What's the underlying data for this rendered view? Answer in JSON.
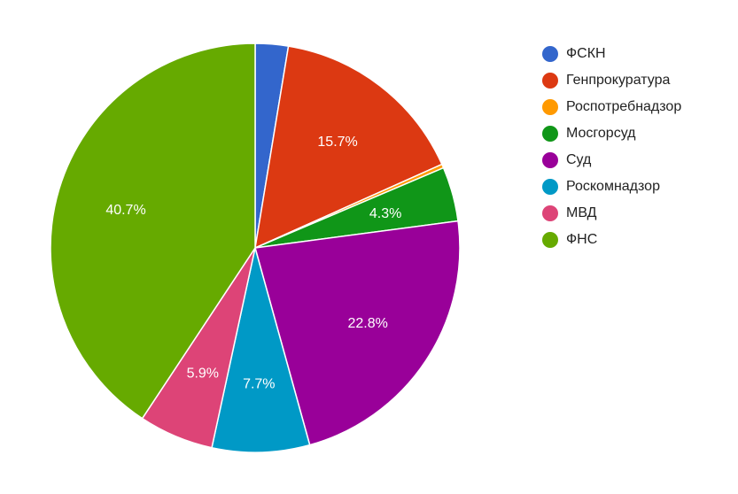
{
  "chart_data": {
    "type": "pie",
    "title": "",
    "slices": [
      {
        "label": "ФСКН",
        "value": 2.6,
        "display": "",
        "color": "#3366cc"
      },
      {
        "label": "Генпрокуратура",
        "value": 15.7,
        "display": "15.7%",
        "color": "#dc3912"
      },
      {
        "label": "Роспотребнадзор",
        "value": 0.3,
        "display": "",
        "color": "#ff9900"
      },
      {
        "label": "Мосгорсуд",
        "value": 4.3,
        "display": "4.3%",
        "color": "#109618"
      },
      {
        "label": "Суд",
        "value": 22.8,
        "display": "22.8%",
        "color": "#990099"
      },
      {
        "label": "Роскомнадзор",
        "value": 7.7,
        "display": "7.7%",
        "color": "#0099c6"
      },
      {
        "label": "МВД",
        "value": 5.9,
        "display": "5.9%",
        "color": "#dd4477"
      },
      {
        "label": "ФНС",
        "value": 40.7,
        "display": "40.7%",
        "color": "#66aa00"
      }
    ],
    "start_angle_deg": 0,
    "direction": "clockwise",
    "legend_position": "right"
  }
}
